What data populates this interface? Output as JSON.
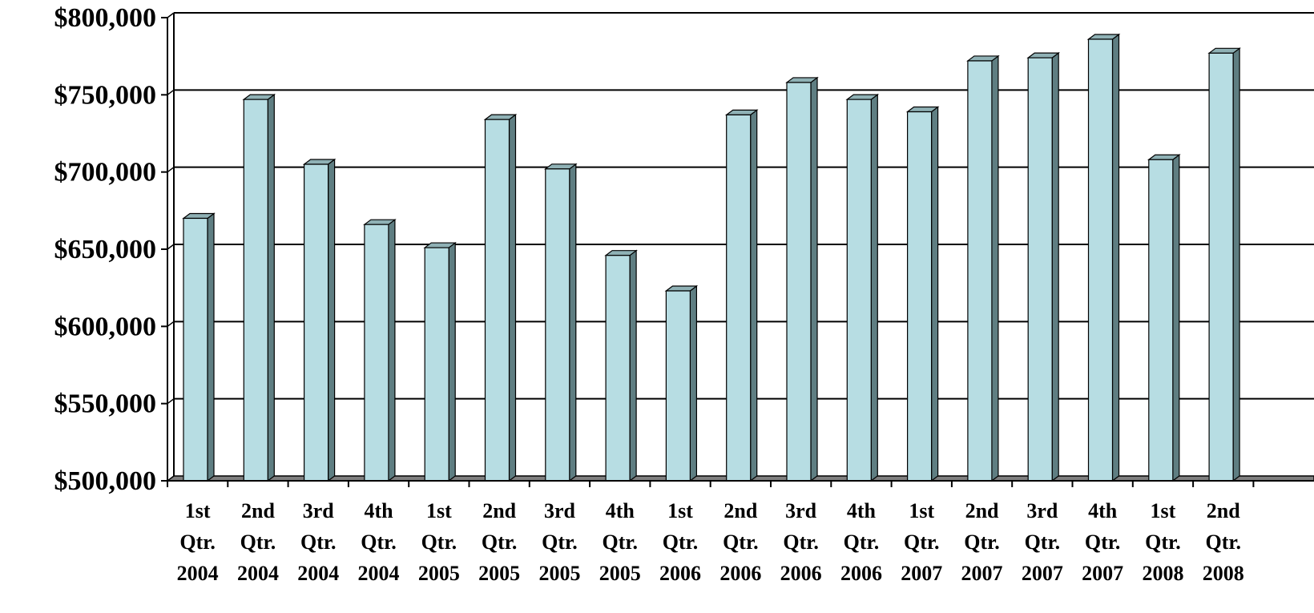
{
  "chart_data": {
    "type": "bar",
    "style": "3d-column",
    "categories": [
      [
        "1st",
        "Qtr.",
        "2004"
      ],
      [
        "2nd",
        "Qtr.",
        "2004"
      ],
      [
        "3rd",
        "Qtr.",
        "2004"
      ],
      [
        "4th",
        "Qtr.",
        "2004"
      ],
      [
        "1st",
        "Qtr.",
        "2005"
      ],
      [
        "2nd",
        "Qtr.",
        "2005"
      ],
      [
        "3rd",
        "Qtr.",
        "2005"
      ],
      [
        "4th",
        "Qtr.",
        "2005"
      ],
      [
        "1st",
        "Qtr.",
        "2006"
      ],
      [
        "2nd",
        "Qtr.",
        "2006"
      ],
      [
        "3rd",
        "Qtr.",
        "2006"
      ],
      [
        "4th",
        "Qtr.",
        "2006"
      ],
      [
        "1st",
        "Qtr.",
        "2007"
      ],
      [
        "2nd",
        "Qtr.",
        "2007"
      ],
      [
        "3rd",
        "Qtr.",
        "2007"
      ],
      [
        "4th",
        "Qtr.",
        "2007"
      ],
      [
        "1st",
        "Qtr.",
        "2008"
      ],
      [
        "2nd",
        "Qtr.",
        "2008"
      ]
    ],
    "values": [
      670000,
      747000,
      705000,
      666000,
      651000,
      734000,
      702000,
      646000,
      623000,
      737000,
      758000,
      747000,
      739000,
      772000,
      774000,
      786000,
      708000,
      777000
    ],
    "ylim": [
      500000,
      800000
    ],
    "y_ticks": [
      {
        "value": 500000,
        "label": "$500,000"
      },
      {
        "value": 550000,
        "label": "$550,000"
      },
      {
        "value": 600000,
        "label": "$600,000"
      },
      {
        "value": 650000,
        "label": "$650,000"
      },
      {
        "value": 700000,
        "label": "$700,000"
      },
      {
        "value": 750000,
        "label": "$750,000"
      },
      {
        "value": 800000,
        "label": "$800,000"
      }
    ],
    "title": "",
    "xlabel": "",
    "ylabel": "",
    "grid": true,
    "legend": "none",
    "colors": {
      "bar_front": "#b7dde3",
      "bar_top": "#8fb1b5",
      "bar_side": "#5f7e82",
      "outline": "#000000",
      "floor": "#7f7f7f"
    }
  }
}
